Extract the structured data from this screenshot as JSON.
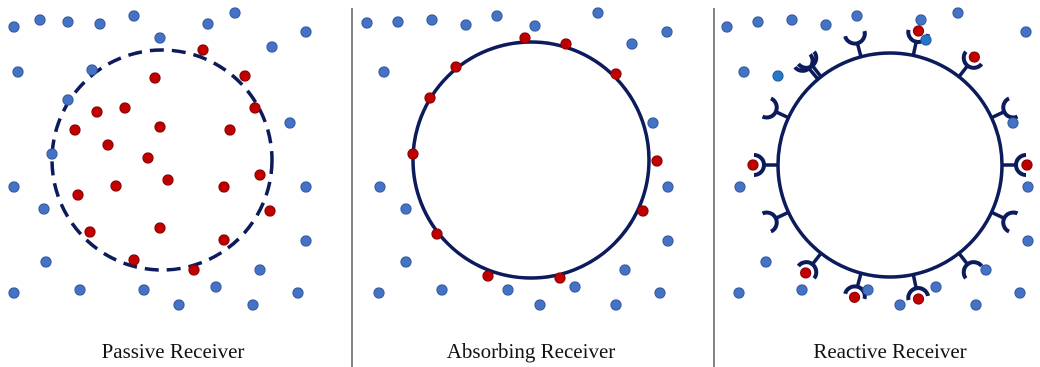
{
  "colors": {
    "free_molecule": "#4472C4",
    "free_molecule_stroke": "#2F5597",
    "captured_molecule": "#C00000",
    "captured_molecule_stroke": "#7F0000",
    "receiver": "#0C1B5C",
    "divider": "#333333",
    "off_molecule": "#1F78C8"
  },
  "panels": [
    {
      "id": "passive",
      "caption": "Passive Receiver"
    },
    {
      "id": "absorbing",
      "caption": "Absorbing Receiver"
    },
    {
      "id": "reactive",
      "caption": "Reactive Receiver"
    }
  ]
}
